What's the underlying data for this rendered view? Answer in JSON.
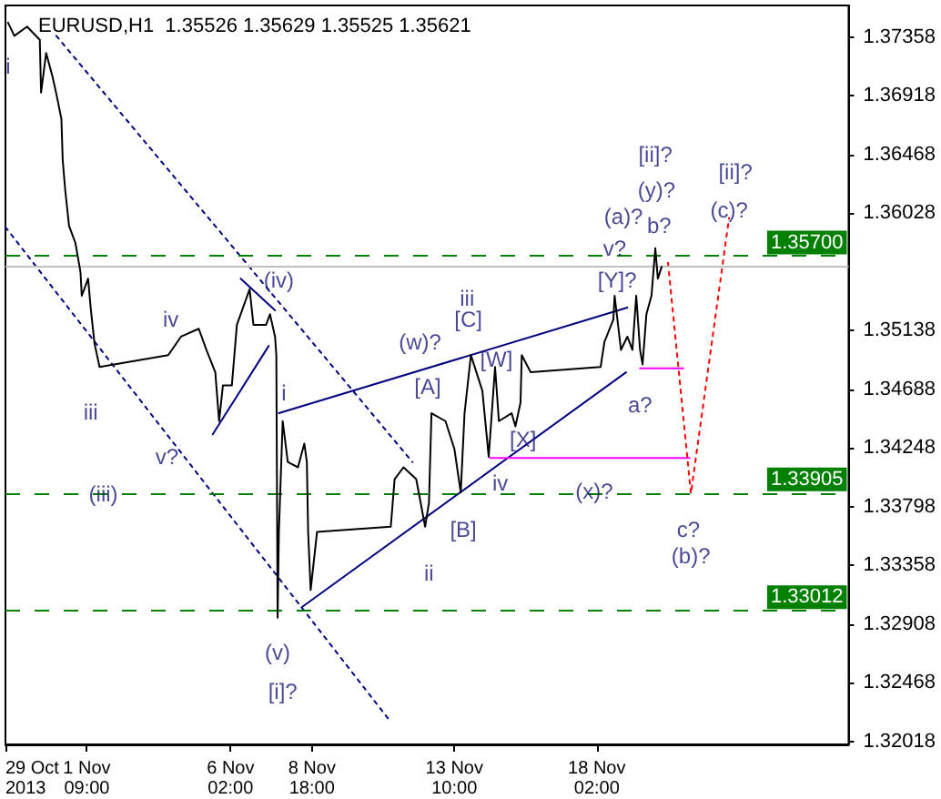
{
  "chart_data": {
    "type": "line",
    "title": "EURUSD,H1  1.35526 1.35629 1.35525 1.35621",
    "xlim": [
      "2013-10-29T17:00",
      "2013-11-26T08:00"
    ],
    "ylim": [
      1.32,
      1.376
    ],
    "xticks": [
      {
        "value": "2013-10-29T17:00",
        "label": "29 Oct 2013"
      },
      {
        "value": "2013-11-01T09:00",
        "label": "1 Nov 09:00"
      },
      {
        "value": "2013-11-06T02:00",
        "label": "6 Nov 02:00"
      },
      {
        "value": "2013-11-08T18:00",
        "label": "8 Nov 18:00"
      },
      {
        "value": "2013-11-13T10:00",
        "label": "13 Nov 10:00"
      },
      {
        "value": "2013-11-18T02:00",
        "label": "18 Nov 02:00"
      }
    ],
    "yticks": [
      1.32018,
      1.32468,
      1.32908,
      1.33358,
      1.33798,
      1.34248,
      1.34688,
      1.35138,
      1.36028,
      1.36468,
      1.36918,
      1.37358
    ],
    "grid": false,
    "marker": "none",
    "series": [
      {
        "color": "#000000",
        "x": [
          "2013-10-29T19:00",
          "2013-10-30T00:00",
          "2013-10-30T10:00",
          "2013-10-30T20:00",
          "2013-10-30T21:00",
          "2013-10-31T01:00",
          "2013-10-31T06:00",
          "2013-10-31T09:00",
          "2013-10-31T13:00",
          "2013-10-31T14:00",
          "2013-10-31T16:00",
          "2013-10-31T19:00",
          "2013-11-01T00:00",
          "2013-11-01T04:00",
          "2013-11-01T05:00",
          "2013-11-01T10:00",
          "2013-11-01T12:00",
          "2013-11-01T15:00",
          "2013-11-01T19:00",
          "2013-11-04T01:00",
          "2013-11-04T11:00",
          "2013-11-05T01:00",
          "2013-11-05T07:00",
          "2013-11-05T14:00",
          "2013-11-05T17:00",
          "2013-11-05T20:00",
          "2013-11-06T03:00",
          "2013-11-06T07:00",
          "2013-11-06T17:00",
          "2013-11-06T20:00",
          "2013-11-07T06:00",
          "2013-11-07T09:00",
          "2013-11-07T13:00",
          "2013-11-07T14:00",
          "2013-11-07T15:00",
          "2013-11-07T16:00",
          "2013-11-07T19:00",
          "2013-11-07T23:00",
          "2013-11-08T07:00",
          "2013-11-08T12:00",
          "2013-11-08T14:00",
          "2013-11-08T15:00",
          "2013-11-08T17:00",
          "2013-11-08T22:00",
          "2013-11-11T08:00",
          "2013-11-11T11:00",
          "2013-11-11T18:00",
          "2013-11-12T04:00",
          "2013-11-12T11:00",
          "2013-11-12T14:00",
          "2013-11-12T16:00",
          "2013-11-13T03:00",
          "2013-11-13T10:00",
          "2013-11-13T15:00",
          "2013-11-13T18:00",
          "2013-11-13T23:00",
          "2013-11-14T08:00",
          "2013-11-14T13:00",
          "2013-11-14T18:00",
          "2013-11-14T21:00",
          "2013-11-15T07:00",
          "2013-11-15T10:00",
          "2013-11-15T14:00",
          "2013-11-15T15:00",
          "2013-11-15T22:00",
          "2013-11-18T05:00",
          "2013-11-18T08:00",
          "2013-11-18T15:00",
          "2013-11-18T16:00",
          "2013-11-18T21:00",
          "2013-11-19T02:00",
          "2013-11-19T06:00",
          "2013-11-19T09:00",
          "2013-11-19T12:00",
          "2013-11-19T14:00",
          "2013-11-19T17:00",
          "2013-11-19T21:00",
          "2013-11-20T00:00",
          "2013-11-20T02:00",
          "2013-11-20T05:00"
        ],
        "values": [
          1.3747,
          1.3737,
          1.3744,
          1.3734,
          1.3694,
          1.3724,
          1.3706,
          1.3693,
          1.3674,
          1.3643,
          1.362,
          1.3593,
          1.358,
          1.3558,
          1.354,
          1.3553,
          1.3531,
          1.3504,
          1.3486,
          1.3495,
          1.3509,
          1.3515,
          1.3499,
          1.3482,
          1.3445,
          1.3472,
          1.3472,
          1.3518,
          1.3545,
          1.3518,
          1.3518,
          1.3526,
          1.3509,
          1.3495,
          1.3296,
          1.3361,
          1.3445,
          1.3414,
          1.341,
          1.3428,
          1.3414,
          1.3361,
          1.3317,
          1.3361,
          1.3365,
          1.3401,
          1.341,
          1.3401,
          1.3365,
          1.3383,
          1.3451,
          1.3445,
          1.3424,
          1.3391,
          1.3451,
          1.3495,
          1.3468,
          1.3418,
          1.3486,
          1.3445,
          1.3451,
          1.3441,
          1.3459,
          1.3495,
          1.3482,
          1.3486,
          1.3505,
          1.3522,
          1.354,
          1.3499,
          1.3509,
          1.3499,
          1.354,
          1.3499,
          1.3488,
          1.3526,
          1.354,
          1.3576,
          1.3553,
          1.3562
        ]
      },
      {
        "color": "#000080",
        "line_style": "dotted",
        "x": [
          "2013-10-31T09:00",
          "2013-11-12T01:00"
        ],
        "values": [
          1.3737,
          1.3414
        ]
      },
      {
        "color": "#000080",
        "line_style": "dotted",
        "x": [
          "2013-10-29T17:00",
          "2013-11-11T08:00"
        ],
        "values": [
          1.3592,
          1.3217
        ]
      },
      {
        "color": "#000080",
        "x": [
          "2013-11-06T10:00",
          "2013-11-07T13:00"
        ],
        "values": [
          1.3553,
          1.3529
        ]
      },
      {
        "color": "#000080",
        "x": [
          "2013-11-05T12:00",
          "2013-11-07T08:00"
        ],
        "values": [
          1.3435,
          1.3502
        ]
      },
      {
        "color": "#000080",
        "x": [
          "2013-11-07T16:00",
          "2013-11-19T02:00"
        ],
        "values": [
          1.3451,
          1.3531
        ]
      },
      {
        "color": "#000080",
        "x": [
          "2013-11-08T10:00",
          "2013-11-19T01:00"
        ],
        "values": [
          1.3304,
          1.3482
        ]
      },
      {
        "color": "#ff00ff",
        "x": [
          "2013-11-19T12:00",
          "2013-11-20T22:00"
        ],
        "values": [
          1.3485,
          1.3485
        ]
      },
      {
        "color": "#ff00ff",
        "x": [
          "2013-11-14T14:00",
          "2013-11-21T03:00"
        ],
        "values": [
          1.3417,
          1.3417
        ]
      },
      {
        "color": "#ff0000",
        "line_style": "dotted",
        "x": [
          "2013-11-20T10:00",
          "2013-11-21T04:00",
          "2013-11-22T10:00"
        ],
        "values": [
          1.3565,
          1.339,
          1.3599
        ]
      }
    ],
    "ref_lines": [
      {
        "axis": "y",
        "value": 1.357,
        "label": "1.35700",
        "color": "#008000",
        "line_style": "dashed"
      },
      {
        "axis": "y",
        "value": 1.33905,
        "label": "1.33905",
        "color": "#008000",
        "line_style": "dashed"
      },
      {
        "axis": "y",
        "value": 1.33012,
        "label": "1.33012",
        "color": "#008000",
        "line_style": "dashed"
      },
      {
        "axis": "y",
        "value": 1.35621,
        "color": "#c0c0c0",
        "line_style": "solid"
      }
    ],
    "annotations": [
      "i",
      "iv",
      "iii",
      "v?",
      "(iii)",
      "(iv)",
      "i",
      "(v)",
      "[i]?",
      "(w)?",
      "[A]",
      "iii",
      "[C]",
      "[W]",
      "[B]",
      "ii",
      "iv",
      "[X]",
      "(x)?",
      "[Y]?",
      "v?",
      "(a)?",
      "b?",
      "(y)?",
      "[ii]?",
      "a?",
      "[ii]?",
      "(c)?",
      "c?",
      "(b)?"
    ]
  }
}
